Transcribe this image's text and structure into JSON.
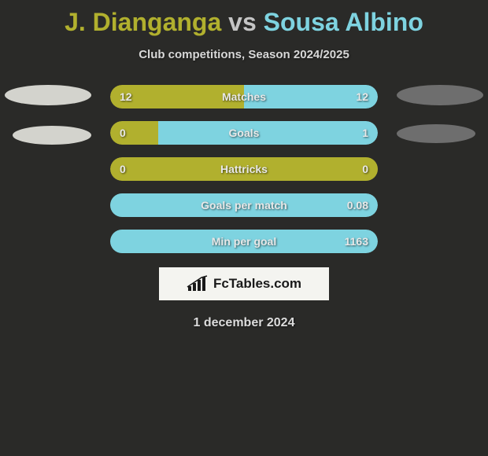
{
  "title": {
    "player1": "J. Dianganga",
    "vs": "vs",
    "player2": "Sousa Albino"
  },
  "subtitle": "Club competitions, Season 2024/2025",
  "colors": {
    "left_bar": "#b1b02e",
    "right_bar": "#7ed3e0",
    "background": "#2a2a28",
    "label_text": "#e8e8e8"
  },
  "bar_width_total": 340,
  "rows": [
    {
      "label": "Matches",
      "left_val": "12",
      "right_val": "12",
      "left_pct": 50,
      "right_pct": 50
    },
    {
      "label": "Goals",
      "left_val": "0",
      "right_val": "1",
      "left_pct": 18,
      "right_pct": 82
    },
    {
      "label": "Hattricks",
      "left_val": "0",
      "right_val": "0",
      "left_pct": 100,
      "right_pct": 0
    },
    {
      "label": "Goals per match",
      "left_val": "",
      "right_val": "0.08",
      "left_pct": 0,
      "right_pct": 100
    },
    {
      "label": "Min per goal",
      "left_val": "",
      "right_val": "1163",
      "left_pct": 0,
      "right_pct": 100
    }
  ],
  "logo_text": "FcTables.com",
  "date": "1 december 2024"
}
